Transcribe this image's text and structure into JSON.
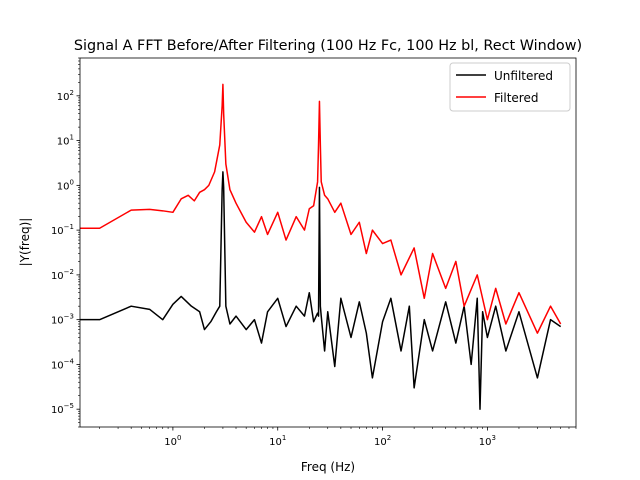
{
  "chart_data": {
    "type": "line",
    "title": "Signal A FFT Before/After Filtering (100 Hz Fc, 100 Hz bl, Rect Window)",
    "xlabel": "Freq (Hz)",
    "ylabel": "|Y(freq)|",
    "xscale": "log",
    "yscale": "log",
    "xlim": [
      0.13,
      7000
    ],
    "ylim": [
      4e-06,
      700
    ],
    "grid": false,
    "legend_position": "top-right",
    "x_ticks": [
      {
        "value": 1,
        "base": "10",
        "exp": "0"
      },
      {
        "value": 10,
        "base": "10",
        "exp": "1"
      },
      {
        "value": 100,
        "base": "10",
        "exp": "2"
      },
      {
        "value": 1000,
        "base": "10",
        "exp": "3"
      }
    ],
    "y_ticks": [
      {
        "value": 1e-05,
        "base": "10",
        "exp": "−5"
      },
      {
        "value": 0.0001,
        "base": "10",
        "exp": "−4"
      },
      {
        "value": 0.001,
        "base": "10",
        "exp": "−3"
      },
      {
        "value": 0.01,
        "base": "10",
        "exp": "−2"
      },
      {
        "value": 0.1,
        "base": "10",
        "exp": "−1"
      },
      {
        "value": 1,
        "base": "10",
        "exp": "0"
      },
      {
        "value": 10,
        "base": "10",
        "exp": "1"
      },
      {
        "value": 100,
        "base": "10",
        "exp": "2"
      }
    ],
    "series": [
      {
        "name": "Unfiltered",
        "color": "#000000",
        "x": [
          0.13,
          0.2,
          0.4,
          0.6,
          0.8,
          1.0,
          1.2,
          1.5,
          1.8,
          2.0,
          2.3,
          2.6,
          2.8,
          2.95,
          3.0,
          3.05,
          3.2,
          3.5,
          4,
          5,
          6,
          7,
          8,
          10,
          12,
          15,
          18,
          20,
          22,
          24,
          24.5,
          25,
          25.5,
          26,
          28,
          30,
          35,
          40,
          50,
          60,
          70,
          80,
          100,
          120,
          150,
          180,
          200,
          250,
          300,
          400,
          500,
          600,
          700,
          800,
          850,
          900,
          1000,
          1200,
          1500,
          2000,
          3000,
          4000,
          5000
        ],
        "y": [
          0.001,
          0.001,
          0.002,
          0.0017,
          0.001,
          0.0022,
          0.0033,
          0.002,
          0.0015,
          0.0006,
          0.0009,
          0.0015,
          0.002,
          0.8,
          2.0,
          0.9,
          0.002,
          0.0008,
          0.0012,
          0.0006,
          0.001,
          0.0003,
          0.0015,
          0.003,
          0.0007,
          0.002,
          0.0012,
          0.004,
          0.0009,
          0.0014,
          0.0012,
          0.9,
          0.002,
          0.0012,
          0.0002,
          0.0015,
          9e-05,
          0.003,
          0.0004,
          0.0025,
          0.0005,
          5e-05,
          0.0009,
          0.003,
          0.0002,
          0.002,
          3e-05,
          0.001,
          0.0002,
          0.0025,
          0.0003,
          0.002,
          0.0001,
          0.003,
          1e-05,
          0.0015,
          0.0004,
          0.002,
          0.0002,
          0.0015,
          5e-05,
          0.001,
          0.0007
        ]
      },
      {
        "name": "Filtered",
        "color": "#ff0000",
        "x": [
          0.13,
          0.2,
          0.4,
          0.6,
          0.8,
          1.0,
          1.2,
          1.4,
          1.6,
          1.8,
          2.0,
          2.2,
          2.5,
          2.8,
          2.95,
          3.0,
          3.05,
          3.2,
          3.5,
          4,
          5,
          6,
          7,
          8,
          10,
          12,
          15,
          18,
          20,
          22,
          24,
          24.5,
          25,
          25.5,
          26,
          28,
          30,
          35,
          40,
          50,
          60,
          70,
          80,
          100,
          120,
          150,
          200,
          250,
          300,
          400,
          500,
          600,
          800,
          1000,
          1200,
          1500,
          2000,
          3000,
          4000,
          5000
        ],
        "y": [
          0.11,
          0.11,
          0.28,
          0.29,
          0.27,
          0.25,
          0.5,
          0.6,
          0.45,
          0.7,
          0.8,
          1.0,
          2.0,
          8,
          60,
          180,
          40,
          3,
          0.8,
          0.4,
          0.15,
          0.09,
          0.2,
          0.08,
          0.25,
          0.06,
          0.2,
          0.1,
          0.3,
          0.35,
          1.2,
          8,
          75,
          8,
          1.2,
          0.6,
          0.5,
          0.25,
          0.4,
          0.08,
          0.15,
          0.03,
          0.1,
          0.05,
          0.06,
          0.01,
          0.04,
          0.003,
          0.03,
          0.005,
          0.02,
          0.002,
          0.01,
          0.001,
          0.005,
          0.0008,
          0.004,
          0.0005,
          0.002,
          0.0008
        ]
      }
    ]
  }
}
